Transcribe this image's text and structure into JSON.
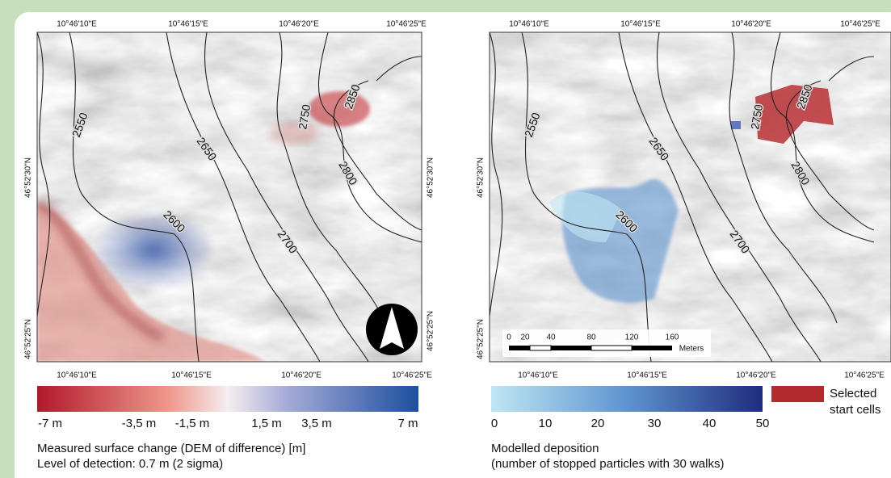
{
  "left_map": {
    "top_labels": [
      "10°46'10\"E",
      "10°46'15\"E",
      "10°46'20\"E",
      "10°46'25\"E"
    ],
    "bottom_labels": [
      "10°46'10\"E",
      "10°46'15\"E",
      "10°46'20\"E",
      "10°46'25\"E"
    ],
    "left_labels": [
      "46°52'30\"N",
      "46°52'25\"N"
    ],
    "right_labels": [
      "46°52'30\"N",
      "46°52'25\"N"
    ],
    "contours": [
      "2550",
      "2600",
      "2650",
      "2700",
      "2750",
      "2800",
      "2850"
    ]
  },
  "right_map": {
    "top_labels": [
      "10°46'10\"E",
      "10°46'15\"E",
      "10°46'20\"E",
      "10°46'25\"E"
    ],
    "bottom_labels": [
      "10°46'10\"E",
      "10°46'15\"E",
      "10°46'20\"E",
      "10°46'25\"E"
    ],
    "left_labels": [
      "46°52'30\"N",
      "46°52'25\"N"
    ],
    "contours": [
      "2550",
      "2600",
      "2650",
      "2700",
      "2750",
      "2800",
      "2850"
    ],
    "scale_bar": {
      "ticks": [
        "0",
        "20",
        "40",
        "80",
        "120",
        "160"
      ],
      "unit": "Meters"
    }
  },
  "left_legend": {
    "ticks": [
      "-7 m",
      "-3,5 m",
      "-1,5 m",
      "1,5 m",
      "3,5 m",
      "7 m"
    ],
    "caption": [
      "Measured surface change (DEM of difference) [m]",
      "Level of detection: 0.7 m (2 sigma)"
    ]
  },
  "right_legend": {
    "ticks": [
      "0",
      "10",
      "20",
      "30",
      "40",
      "50"
    ],
    "caption": [
      "Modelled deposition",
      "(number of stopped particles with 30 walks)"
    ],
    "start_cells": [
      "Selected",
      "start cells"
    ]
  }
}
